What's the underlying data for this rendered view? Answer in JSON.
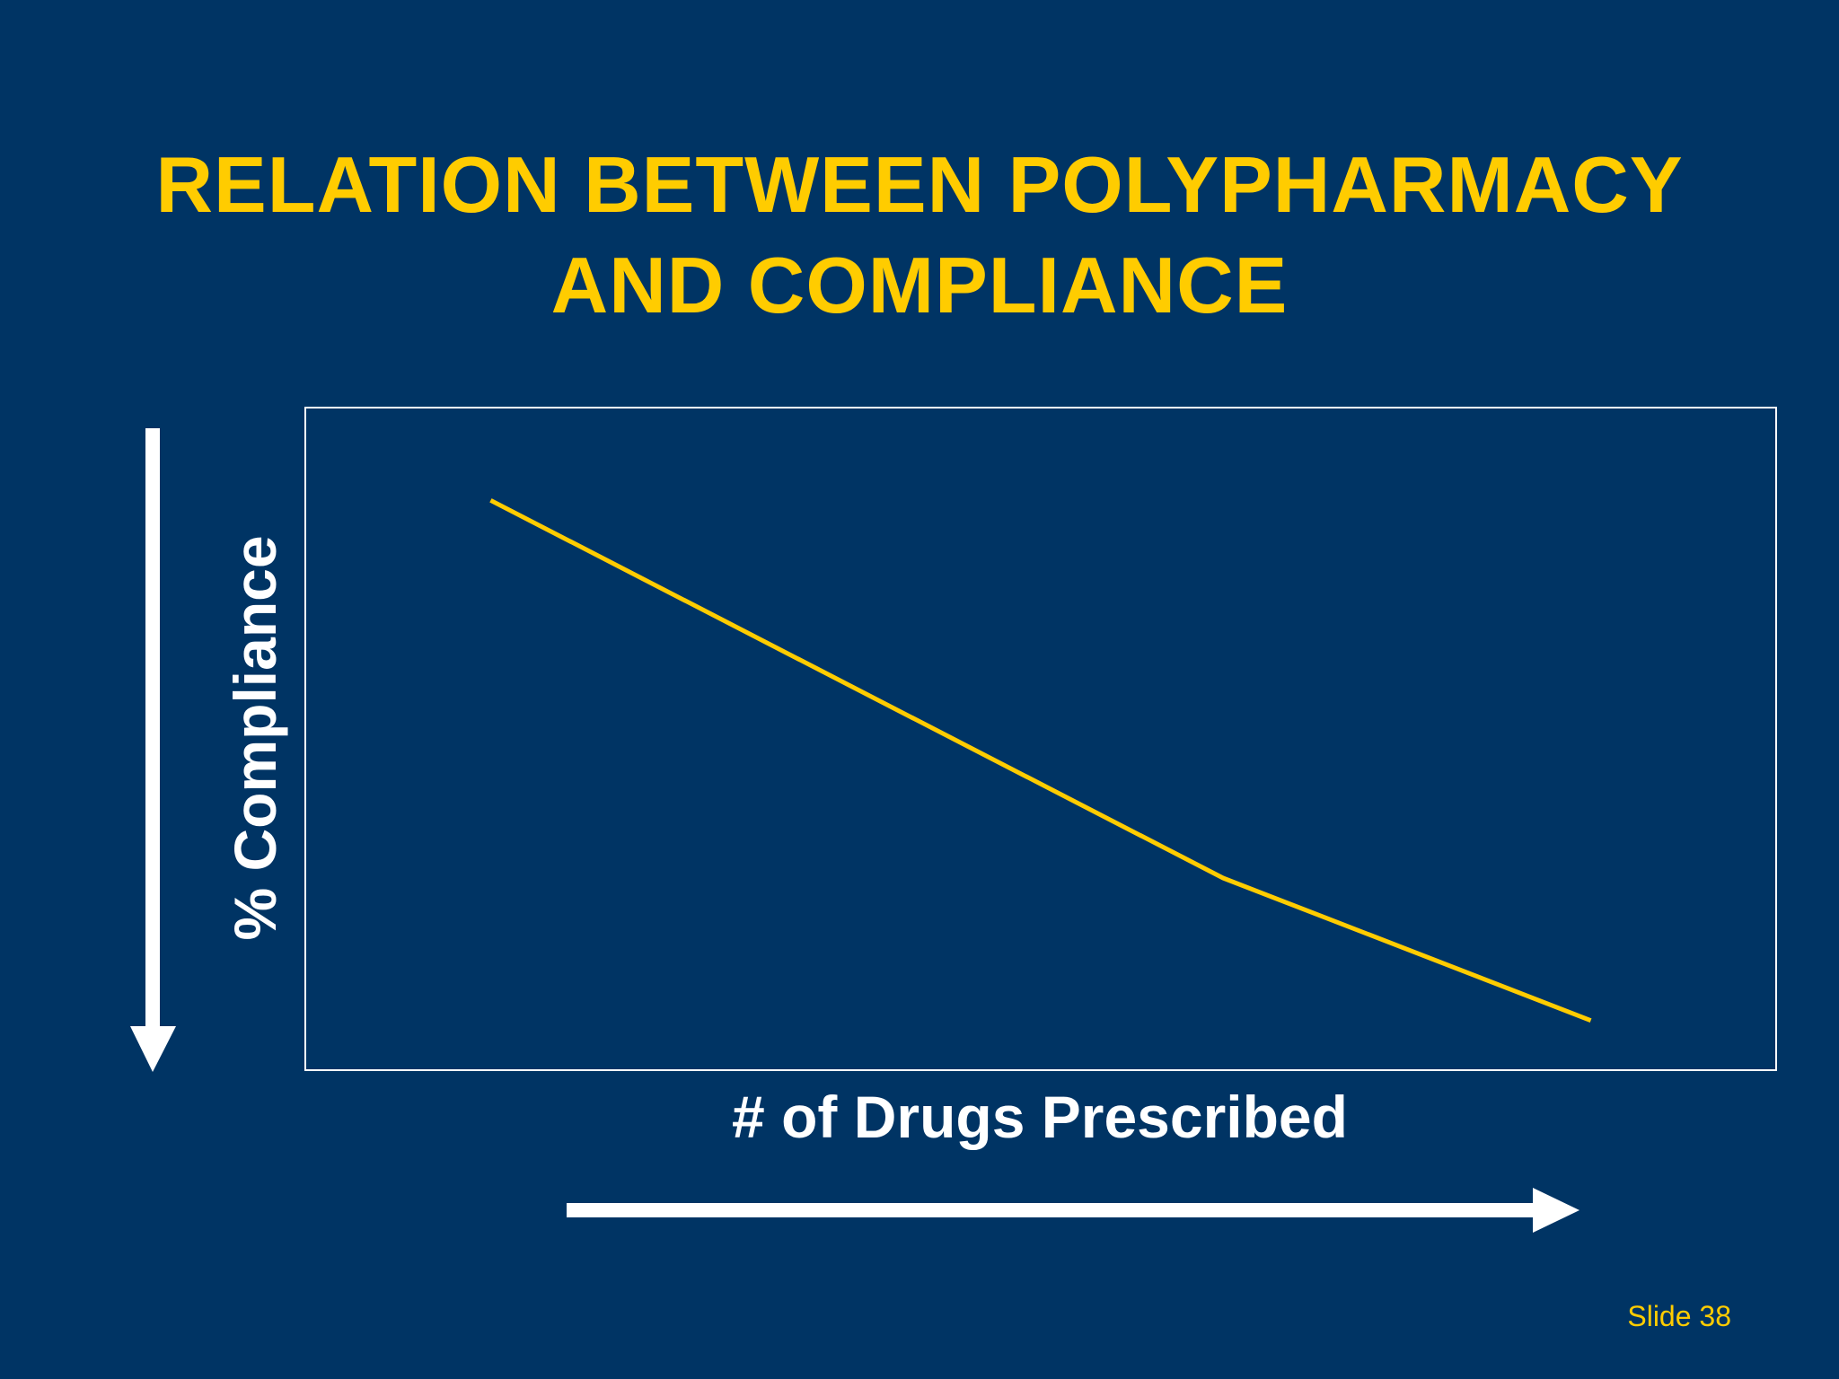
{
  "slide": {
    "title_line1": "RELATION BETWEEN POLYPHARMACY",
    "title_line2": "AND COMPLIANCE",
    "slide_number": "Slide 38"
  },
  "colors": {
    "background": "#003464",
    "accent": "#FFCC00",
    "text": "#FFFFFF"
  },
  "chart_data": {
    "type": "line",
    "title": "RELATION BETWEEN POLYPHARMACY AND COMPLIANCE",
    "xlabel": "# of Drugs Prescribed",
    "ylabel": "% Compliance",
    "x_direction": "increasing",
    "y_direction": "decreasing",
    "grid": false,
    "legend": "none",
    "xlim": [
      0,
      100
    ],
    "ylim": [
      0,
      100
    ],
    "series": [
      {
        "x": [
          12.6,
          62.4,
          87.4
        ],
        "y": [
          86,
          29,
          7.5
        ]
      }
    ]
  }
}
